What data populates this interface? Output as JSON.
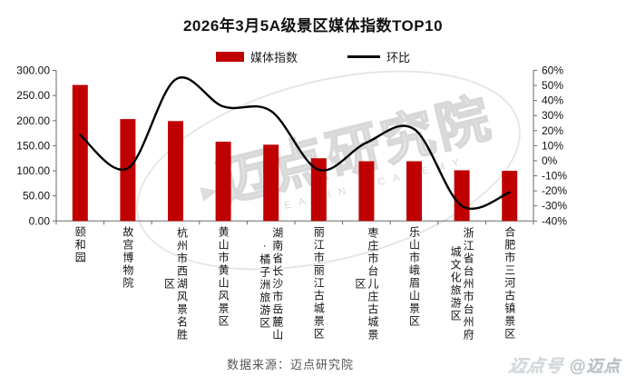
{
  "title": "2026年3月5A级景区媒体指数TOP10",
  "legend": [
    {
      "label": "媒体指数",
      "type": "bar",
      "color": "#c00000"
    },
    {
      "label": "环比",
      "type": "line",
      "color": "#000000"
    }
  ],
  "chart_data": {
    "type": "bar",
    "title": "2026年3月5A级景区媒体指数TOP10",
    "categories": [
      "颐和园",
      "故宫博物院",
      "杭州市西湖风景名胜区",
      "黄山市黄山风景区",
      "湖南省长沙市岳麓山·橘子洲旅游区",
      "丽江市丽江古城景区",
      "枣庄市台儿庄古城景区",
      "乐山市峨眉山景区",
      "浙江省台州市台州府城文化旅游区",
      "合肥市三河古镇景区"
    ],
    "series": [
      {
        "name": "媒体指数",
        "type": "bar",
        "axis": "left",
        "color": "#c00000",
        "values": [
          271,
          203,
          199,
          158,
          152,
          125,
          119,
          119,
          101,
          100
        ]
      },
      {
        "name": "环比",
        "type": "line",
        "smooth": true,
        "axis": "right",
        "color": "#000000",
        "unit": "%",
        "values": [
          17,
          -5,
          54,
          36,
          33,
          -6,
          12,
          21,
          -30,
          -21
        ]
      }
    ],
    "left_axis": {
      "min": 0,
      "max": 300,
      "step": 50,
      "tick_labels": [
        "300.00",
        "250.00",
        "200.00",
        "150.00",
        "100.00",
        "50.00",
        "0.00"
      ]
    },
    "right_axis": {
      "min": -40,
      "max": 60,
      "step": 10,
      "tick_labels": [
        "60%",
        "50%",
        "40%",
        "30%",
        "20%",
        "10%",
        "0%",
        "-10%",
        "-20%",
        "-30%",
        "-40%"
      ]
    },
    "grid": false,
    "legend_position": "top"
  },
  "watermark": {
    "text": "迈点研究院",
    "subtext": "MEADIN ACADEMY"
  },
  "footer": {
    "source": "数据来源：迈点研究院",
    "logo": "迈点号",
    "logo_suffix": "@迈点"
  }
}
